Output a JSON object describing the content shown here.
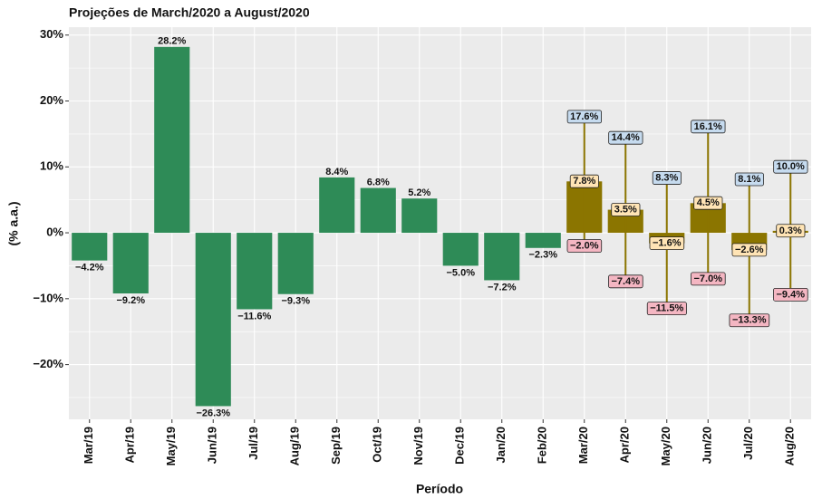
{
  "chart_data": {
    "type": "bar",
    "title": "Projeções de March/2020 a August/2020",
    "x_label": "Período",
    "y_label": "(% a.a.)",
    "categories": [
      "Mar/19",
      "Apr/19",
      "May/19",
      "Jun/19",
      "Jul/19",
      "Aug/19",
      "Sep/19",
      "Oct/19",
      "Nov/19",
      "Dec/19",
      "Jan/20",
      "Feb/20",
      "Mar/20",
      "Apr/20",
      "May/20",
      "Jun/20",
      "Jul/20",
      "Aug/20"
    ],
    "values": [
      -4.2,
      -9.2,
      28.2,
      -26.3,
      -11.6,
      -9.3,
      8.4,
      6.8,
      5.2,
      -5.0,
      -7.2,
      -2.3,
      7.8,
      3.5,
      -1.6,
      4.5,
      -2.6,
      0.3
    ],
    "value_labels": [
      "−4.2%",
      "−9.2%",
      "28.2%",
      "−26.3%",
      "−11.6%",
      "−9.3%",
      "8.4%",
      "6.8%",
      "5.2%",
      "−5.0%",
      "−7.2%",
      "−2.3%",
      "7.8%",
      "3.5%",
      "−1.6%",
      "4.5%",
      "−2.6%",
      "0.3%"
    ],
    "colors": [
      "#2e8b57",
      "#2e8b57",
      "#2e8b57",
      "#2e8b57",
      "#2e8b57",
      "#2e8b57",
      "#2e8b57",
      "#2e8b57",
      "#2e8b57",
      "#2e8b57",
      "#2e8b57",
      "#2e8b57",
      "#8b7500",
      "#8b7500",
      "#8b7500",
      "#8b7500",
      "#8b7500",
      "#8b7500"
    ],
    "upper": [
      null,
      null,
      null,
      null,
      null,
      null,
      null,
      null,
      null,
      null,
      null,
      null,
      17.6,
      14.4,
      8.3,
      16.1,
      8.1,
      10.0
    ],
    "upper_labels": [
      null,
      null,
      null,
      null,
      null,
      null,
      null,
      null,
      null,
      null,
      null,
      null,
      "17.6%",
      "14.4%",
      "8.3%",
      "16.1%",
      "8.1%",
      "10.0%"
    ],
    "lower": [
      null,
      null,
      null,
      null,
      null,
      null,
      null,
      null,
      null,
      null,
      null,
      null,
      -2.0,
      -7.4,
      -11.5,
      -7.0,
      -13.3,
      -9.4
    ],
    "lower_labels": [
      null,
      null,
      null,
      null,
      null,
      null,
      null,
      null,
      null,
      null,
      null,
      null,
      "−2.0%",
      "−7.4%",
      "−11.5%",
      "−7.0%",
      "−13.3%",
      "−9.4%"
    ],
    "ylim": [
      -28.3,
      31.2
    ],
    "yticks": [
      {
        "value": -20,
        "label": "−20%"
      },
      {
        "value": -10,
        "label": "−10%"
      },
      {
        "value": 0,
        "label": "0%"
      },
      {
        "value": 10,
        "label": "10%"
      },
      {
        "value": 20,
        "label": "20%"
      },
      {
        "value": 30,
        "label": "30%"
      }
    ],
    "y_minor_ticks": [
      -25,
      -15,
      -5,
      5,
      15,
      25
    ],
    "grid": true
  }
}
